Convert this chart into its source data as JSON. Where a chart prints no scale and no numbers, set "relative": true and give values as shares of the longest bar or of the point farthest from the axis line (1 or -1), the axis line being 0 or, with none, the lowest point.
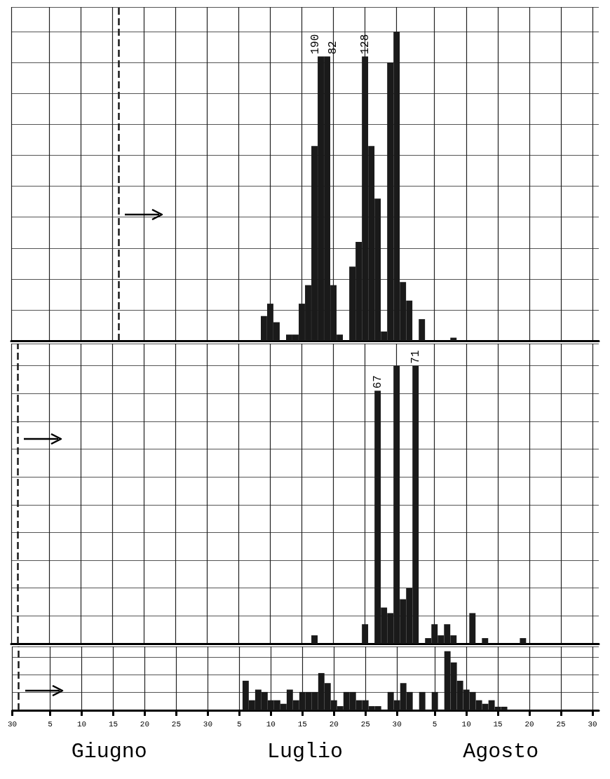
{
  "chart_data": [
    {
      "type": "bar",
      "relative": true,
      "tick_labels": false,
      "grid": true,
      "xlim": [
        "--05-30",
        "--08-31"
      ],
      "xticks": [
        {
          "value": "--05-30",
          "label": "30"
        },
        {
          "value": "--06-05",
          "label": "5"
        },
        {
          "value": "--06-10",
          "label": "10"
        },
        {
          "value": "--06-15",
          "label": "15"
        },
        {
          "value": "--06-20",
          "label": "20"
        },
        {
          "value": "--06-25",
          "label": "25"
        },
        {
          "value": "--06-30",
          "label": "30"
        },
        {
          "value": "--07-05",
          "label": "5"
        },
        {
          "value": "--07-10",
          "label": "10"
        },
        {
          "value": "--07-15",
          "label": "15"
        },
        {
          "value": "--07-20",
          "label": "20"
        },
        {
          "value": "--07-25",
          "label": "25"
        },
        {
          "value": "--07-30",
          "label": "30"
        },
        {
          "value": "--08-05",
          "label": "5"
        },
        {
          "value": "--08-10",
          "label": "10"
        },
        {
          "value": "--08-15",
          "label": "15"
        },
        {
          "value": "--08-20",
          "label": "20"
        },
        {
          "value": "--08-25",
          "label": "25"
        },
        {
          "value": "--08-30",
          "label": "30"
        }
      ],
      "series": [
        {
          "color": "#1a1a1a",
          "x": [
            "--07-09",
            "--07-10",
            "--07-11",
            "--07-13",
            "--07-14",
            "--07-15",
            "--07-16",
            "--07-17",
            "--07-18",
            "--07-19",
            "--07-20",
            "--07-21",
            "--07-23",
            "--07-24",
            "--07-25",
            "--07-26",
            "--07-27",
            "--07-28",
            "--07-29",
            "--07-30",
            "--07-31",
            "--08-01",
            "--08-03",
            "--08-08"
          ],
          "values": [
            0.08,
            0.12,
            0.06,
            0.02,
            0.02,
            0.12,
            0.18,
            0.63,
            0.92,
            0.92,
            0.18,
            0.02,
            0.24,
            0.32,
            0.92,
            0.63,
            0.46,
            0.03,
            0.9,
            1,
            0.19,
            0.13,
            0.07,
            0.01
          ]
        }
      ],
      "ref_lines": [
        {
          "axis": "x",
          "value": "--06-16",
          "line_style": "dashed",
          "color": "#1a1a1a"
        }
      ],
      "annotations": [
        {
          "text": "190",
          "x": "--07-18",
          "y": 0.92
        },
        {
          "text": "82",
          "x": "--07-19",
          "y": 0.92
        },
        {
          "text": "128",
          "x": "--07-25",
          "y": 0.92
        }
      ]
    },
    {
      "type": "bar",
      "relative": true,
      "tick_labels": false,
      "grid": true,
      "xlim": [
        "--05-30",
        "--08-31"
      ],
      "xticks": [
        {
          "value": "--05-30",
          "label": "30"
        },
        {
          "value": "--06-05",
          "label": "5"
        },
        {
          "value": "--06-10",
          "label": "10"
        },
        {
          "value": "--06-15",
          "label": "15"
        },
        {
          "value": "--06-20",
          "label": "20"
        },
        {
          "value": "--06-25",
          "label": "25"
        },
        {
          "value": "--06-30",
          "label": "30"
        },
        {
          "value": "--07-05",
          "label": "5"
        },
        {
          "value": "--07-10",
          "label": "10"
        },
        {
          "value": "--07-15",
          "label": "15"
        },
        {
          "value": "--07-20",
          "label": "20"
        },
        {
          "value": "--07-25",
          "label": "25"
        },
        {
          "value": "--07-30",
          "label": "30"
        },
        {
          "value": "--08-05",
          "label": "5"
        },
        {
          "value": "--08-10",
          "label": "10"
        },
        {
          "value": "--08-15",
          "label": "15"
        },
        {
          "value": "--08-20",
          "label": "20"
        },
        {
          "value": "--08-25",
          "label": "25"
        },
        {
          "value": "--08-30",
          "label": "30"
        }
      ],
      "series": [
        {
          "color": "#1a1a1a",
          "x": [
            "--07-17",
            "--07-25",
            "--07-27",
            "--07-28",
            "--07-29",
            "--07-30",
            "--07-31",
            "--08-01",
            "--08-02",
            "--08-04",
            "--08-05",
            "--08-06",
            "--08-07",
            "--08-08",
            "--08-11",
            "--08-13",
            "--08-19"
          ],
          "values": [
            0.03,
            0.07,
            0.91,
            0.13,
            0.11,
            1,
            0.16,
            0.2,
            1,
            0.02,
            0.07,
            0.03,
            0.07,
            0.03,
            0.11,
            0.02,
            0.02
          ]
        }
      ],
      "ref_lines": [
        {
          "axis": "x",
          "value": "--05-31",
          "line_style": "dashed",
          "color": "#1a1a1a"
        }
      ],
      "annotations": [
        {
          "text": "67",
          "x": "--07-27",
          "y": 0.91
        },
        {
          "text": "71",
          "x": "--08-02",
          "y": 1
        }
      ]
    },
    {
      "type": "bar",
      "relative": true,
      "tick_labels": "x",
      "grid": true,
      "xlim": [
        "--05-30",
        "--08-31"
      ],
      "xticks": [
        {
          "value": "--05-30",
          "label": "30"
        },
        {
          "value": "--06-05",
          "label": "5"
        },
        {
          "value": "--06-10",
          "label": "10"
        },
        {
          "value": "--06-15",
          "label": "15"
        },
        {
          "value": "--06-20",
          "label": "20"
        },
        {
          "value": "--06-25",
          "label": "25"
        },
        {
          "value": "--06-30",
          "label": "30"
        },
        {
          "value": "--07-05",
          "label": "5"
        },
        {
          "value": "--07-10",
          "label": "10"
        },
        {
          "value": "--07-15",
          "label": "15"
        },
        {
          "value": "--07-20",
          "label": "20"
        },
        {
          "value": "--07-25",
          "label": "25"
        },
        {
          "value": "--07-30",
          "label": "30"
        },
        {
          "value": "--08-05",
          "label": "5"
        },
        {
          "value": "--08-10",
          "label": "10"
        },
        {
          "value": "--08-15",
          "label": "15"
        },
        {
          "value": "--08-20",
          "label": "20"
        },
        {
          "value": "--08-25",
          "label": "25"
        },
        {
          "value": "--08-30",
          "label": "30"
        }
      ],
      "series": [
        {
          "color": "#1a1a1a",
          "x": [
            "--07-06",
            "--07-07",
            "--07-08",
            "--07-09",
            "--07-10",
            "--07-11",
            "--07-12",
            "--07-13",
            "--07-14",
            "--07-15",
            "--07-16",
            "--07-17",
            "--07-18",
            "--07-19",
            "--07-20",
            "--07-21",
            "--07-22",
            "--07-23",
            "--07-24",
            "--07-25",
            "--07-26",
            "--07-27",
            "--07-29",
            "--07-30",
            "--07-31",
            "--08-01",
            "--08-03",
            "--08-05",
            "--08-07",
            "--08-08",
            "--08-09",
            "--08-10",
            "--08-11",
            "--08-12",
            "--08-13",
            "--08-14",
            "--08-15",
            "--08-16"
          ],
          "values": [
            0.5,
            0.17,
            0.35,
            0.31,
            0.17,
            0.17,
            0.11,
            0.35,
            0.17,
            0.31,
            0.31,
            0.31,
            0.63,
            0.46,
            0.17,
            0.07,
            0.31,
            0.31,
            0.17,
            0.17,
            0.07,
            0.07,
            0.31,
            0.17,
            0.46,
            0.31,
            0.31,
            0.31,
            1,
            0.81,
            0.5,
            0.35,
            0.31,
            0.17,
            0.11,
            0.17,
            0.06,
            0.06
          ]
        }
      ],
      "ref_lines": [
        {
          "axis": "x",
          "value": "--05-31",
          "line_style": "dashed",
          "color": "#1a1a1a"
        }
      ],
      "annotations": [
        "Giugno",
        "Luglio",
        "Agosto"
      ]
    }
  ]
}
